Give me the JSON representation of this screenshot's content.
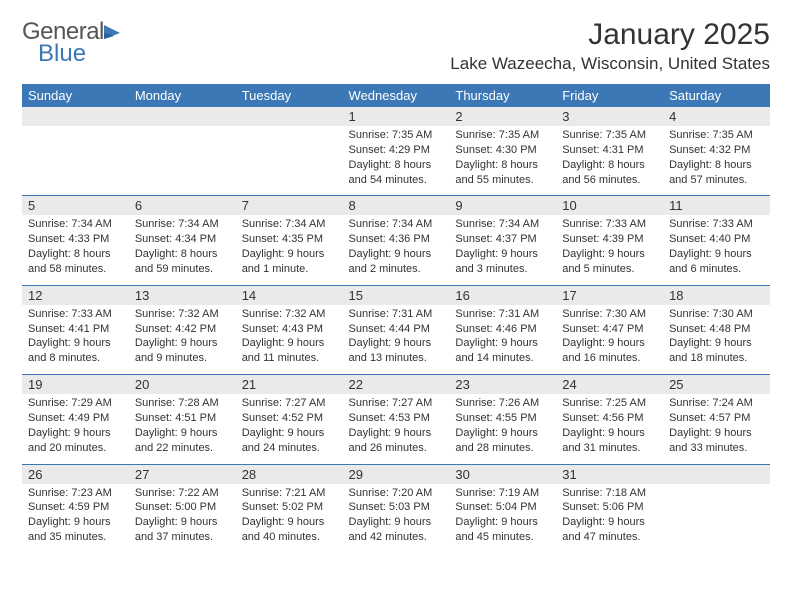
{
  "brand": {
    "text1": "General",
    "text2": "Blue"
  },
  "title": "January 2025",
  "location": "Lake Wazeecha, Wisconsin, United States",
  "colors": {
    "header_bg": "#3b78b5",
    "header_text": "#ffffff",
    "date_bg": "#eaeaea",
    "sep": "#3b78b5",
    "text": "#333333",
    "brand_blue": "#3b78b5",
    "brand_gray": "#555555"
  },
  "day_headers": [
    "Sunday",
    "Monday",
    "Tuesday",
    "Wednesday",
    "Thursday",
    "Friday",
    "Saturday"
  ],
  "weeks": [
    [
      {
        "date": "",
        "lines": []
      },
      {
        "date": "",
        "lines": []
      },
      {
        "date": "",
        "lines": []
      },
      {
        "date": "1",
        "lines": [
          "Sunrise: 7:35 AM",
          "Sunset: 4:29 PM",
          "Daylight: 8 hours",
          "and 54 minutes."
        ]
      },
      {
        "date": "2",
        "lines": [
          "Sunrise: 7:35 AM",
          "Sunset: 4:30 PM",
          "Daylight: 8 hours",
          "and 55 minutes."
        ]
      },
      {
        "date": "3",
        "lines": [
          "Sunrise: 7:35 AM",
          "Sunset: 4:31 PM",
          "Daylight: 8 hours",
          "and 56 minutes."
        ]
      },
      {
        "date": "4",
        "lines": [
          "Sunrise: 7:35 AM",
          "Sunset: 4:32 PM",
          "Daylight: 8 hours",
          "and 57 minutes."
        ]
      }
    ],
    [
      {
        "date": "5",
        "lines": [
          "Sunrise: 7:34 AM",
          "Sunset: 4:33 PM",
          "Daylight: 8 hours",
          "and 58 minutes."
        ]
      },
      {
        "date": "6",
        "lines": [
          "Sunrise: 7:34 AM",
          "Sunset: 4:34 PM",
          "Daylight: 8 hours",
          "and 59 minutes."
        ]
      },
      {
        "date": "7",
        "lines": [
          "Sunrise: 7:34 AM",
          "Sunset: 4:35 PM",
          "Daylight: 9 hours",
          "and 1 minute."
        ]
      },
      {
        "date": "8",
        "lines": [
          "Sunrise: 7:34 AM",
          "Sunset: 4:36 PM",
          "Daylight: 9 hours",
          "and 2 minutes."
        ]
      },
      {
        "date": "9",
        "lines": [
          "Sunrise: 7:34 AM",
          "Sunset: 4:37 PM",
          "Daylight: 9 hours",
          "and 3 minutes."
        ]
      },
      {
        "date": "10",
        "lines": [
          "Sunrise: 7:33 AM",
          "Sunset: 4:39 PM",
          "Daylight: 9 hours",
          "and 5 minutes."
        ]
      },
      {
        "date": "11",
        "lines": [
          "Sunrise: 7:33 AM",
          "Sunset: 4:40 PM",
          "Daylight: 9 hours",
          "and 6 minutes."
        ]
      }
    ],
    [
      {
        "date": "12",
        "lines": [
          "Sunrise: 7:33 AM",
          "Sunset: 4:41 PM",
          "Daylight: 9 hours",
          "and 8 minutes."
        ]
      },
      {
        "date": "13",
        "lines": [
          "Sunrise: 7:32 AM",
          "Sunset: 4:42 PM",
          "Daylight: 9 hours",
          "and 9 minutes."
        ]
      },
      {
        "date": "14",
        "lines": [
          "Sunrise: 7:32 AM",
          "Sunset: 4:43 PM",
          "Daylight: 9 hours",
          "and 11 minutes."
        ]
      },
      {
        "date": "15",
        "lines": [
          "Sunrise: 7:31 AM",
          "Sunset: 4:44 PM",
          "Daylight: 9 hours",
          "and 13 minutes."
        ]
      },
      {
        "date": "16",
        "lines": [
          "Sunrise: 7:31 AM",
          "Sunset: 4:46 PM",
          "Daylight: 9 hours",
          "and 14 minutes."
        ]
      },
      {
        "date": "17",
        "lines": [
          "Sunrise: 7:30 AM",
          "Sunset: 4:47 PM",
          "Daylight: 9 hours",
          "and 16 minutes."
        ]
      },
      {
        "date": "18",
        "lines": [
          "Sunrise: 7:30 AM",
          "Sunset: 4:48 PM",
          "Daylight: 9 hours",
          "and 18 minutes."
        ]
      }
    ],
    [
      {
        "date": "19",
        "lines": [
          "Sunrise: 7:29 AM",
          "Sunset: 4:49 PM",
          "Daylight: 9 hours",
          "and 20 minutes."
        ]
      },
      {
        "date": "20",
        "lines": [
          "Sunrise: 7:28 AM",
          "Sunset: 4:51 PM",
          "Daylight: 9 hours",
          "and 22 minutes."
        ]
      },
      {
        "date": "21",
        "lines": [
          "Sunrise: 7:27 AM",
          "Sunset: 4:52 PM",
          "Daylight: 9 hours",
          "and 24 minutes."
        ]
      },
      {
        "date": "22",
        "lines": [
          "Sunrise: 7:27 AM",
          "Sunset: 4:53 PM",
          "Daylight: 9 hours",
          "and 26 minutes."
        ]
      },
      {
        "date": "23",
        "lines": [
          "Sunrise: 7:26 AM",
          "Sunset: 4:55 PM",
          "Daylight: 9 hours",
          "and 28 minutes."
        ]
      },
      {
        "date": "24",
        "lines": [
          "Sunrise: 7:25 AM",
          "Sunset: 4:56 PM",
          "Daylight: 9 hours",
          "and 31 minutes."
        ]
      },
      {
        "date": "25",
        "lines": [
          "Sunrise: 7:24 AM",
          "Sunset: 4:57 PM",
          "Daylight: 9 hours",
          "and 33 minutes."
        ]
      }
    ],
    [
      {
        "date": "26",
        "lines": [
          "Sunrise: 7:23 AM",
          "Sunset: 4:59 PM",
          "Daylight: 9 hours",
          "and 35 minutes."
        ]
      },
      {
        "date": "27",
        "lines": [
          "Sunrise: 7:22 AM",
          "Sunset: 5:00 PM",
          "Daylight: 9 hours",
          "and 37 minutes."
        ]
      },
      {
        "date": "28",
        "lines": [
          "Sunrise: 7:21 AM",
          "Sunset: 5:02 PM",
          "Daylight: 9 hours",
          "and 40 minutes."
        ]
      },
      {
        "date": "29",
        "lines": [
          "Sunrise: 7:20 AM",
          "Sunset: 5:03 PM",
          "Daylight: 9 hours",
          "and 42 minutes."
        ]
      },
      {
        "date": "30",
        "lines": [
          "Sunrise: 7:19 AM",
          "Sunset: 5:04 PM",
          "Daylight: 9 hours",
          "and 45 minutes."
        ]
      },
      {
        "date": "31",
        "lines": [
          "Sunrise: 7:18 AM",
          "Sunset: 5:06 PM",
          "Daylight: 9 hours",
          "and 47 minutes."
        ]
      },
      {
        "date": "",
        "lines": []
      }
    ]
  ]
}
